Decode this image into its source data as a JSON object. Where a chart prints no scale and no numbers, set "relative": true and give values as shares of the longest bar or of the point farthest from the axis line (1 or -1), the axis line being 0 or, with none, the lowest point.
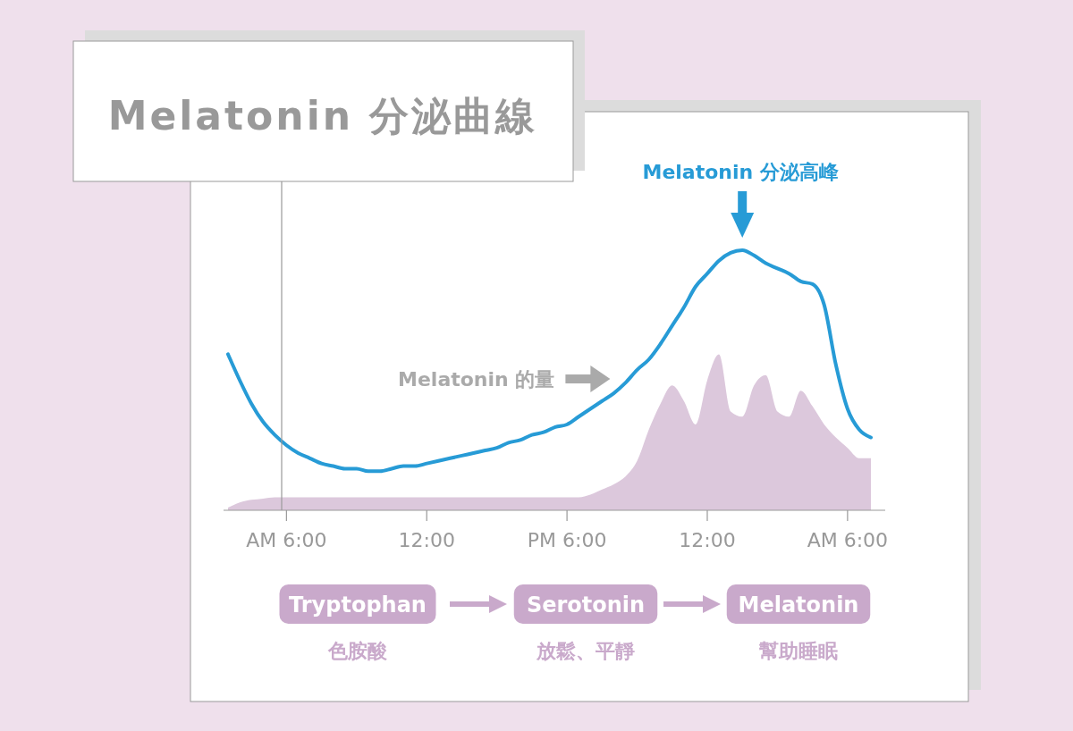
{
  "chart_data": {
    "type": "line",
    "title": "Melatonin 分泌曲線",
    "relative": true,
    "grid": false,
    "categories": [
      null,
      null,
      null,
      null,
      null,
      "AM 6:00",
      null,
      null,
      null,
      null,
      null,
      null,
      null,
      null,
      null,
      null,
      null,
      "12:00",
      null,
      null,
      null,
      null,
      null,
      null,
      null,
      null,
      null,
      null,
      null,
      "PM 6:00",
      null,
      null,
      null,
      null,
      null,
      null,
      null,
      null,
      null,
      null,
      null,
      "12:00",
      null,
      null,
      null,
      null,
      null,
      null,
      null,
      null,
      null,
      null,
      null,
      "AM 6:00",
      null,
      null
    ],
    "series": [
      {
        "type": "area",
        "color": "#dcc8dc",
        "values": [
          0.01,
          0.03,
          0.04,
          0.045,
          0.05,
          0.05,
          0.05,
          0.05,
          0.05,
          0.05,
          0.05,
          0.05,
          0.05,
          0.05,
          0.05,
          0.05,
          0.05,
          0.05,
          0.05,
          0.05,
          0.05,
          0.05,
          0.05,
          0.05,
          0.05,
          0.05,
          0.05,
          0.05,
          0.05,
          0.05,
          0.05,
          0.06,
          0.08,
          0.1,
          0.13,
          0.19,
          0.31,
          0.41,
          0.48,
          0.42,
          0.33,
          0.5,
          0.6,
          0.38,
          0.36,
          0.48,
          0.52,
          0.38,
          0.36,
          0.46,
          0.4,
          0.33,
          0.28,
          0.24,
          0.2,
          0.2
        ]
      },
      {
        "color": "#279bd6",
        "values": [
          0.6,
          0.5,
          0.41,
          0.34,
          0.29,
          0.25,
          0.22,
          0.2,
          0.18,
          0.17,
          0.16,
          0.16,
          0.15,
          0.15,
          0.16,
          0.17,
          0.17,
          0.18,
          0.19,
          0.2,
          0.21,
          0.22,
          0.23,
          0.24,
          0.26,
          0.27,
          0.29,
          0.3,
          0.32,
          0.33,
          0.36,
          0.39,
          0.42,
          0.45,
          0.49,
          0.54,
          0.58,
          0.64,
          0.71,
          0.78,
          0.86,
          0.91,
          0.96,
          0.99,
          1,
          0.98,
          0.95,
          0.93,
          0.91,
          0.88,
          0.87,
          0.79,
          0.56,
          0.39,
          0.31,
          0.28
        ]
      }
    ],
    "annotations": [
      "Melatonin 分泌高峰",
      "Melatonin 的量",
      "Tryptophan",
      "色胺酸",
      "Serotonin",
      "放鬆、平靜",
      "Melatonin",
      "幫助睡眠"
    ]
  }
}
